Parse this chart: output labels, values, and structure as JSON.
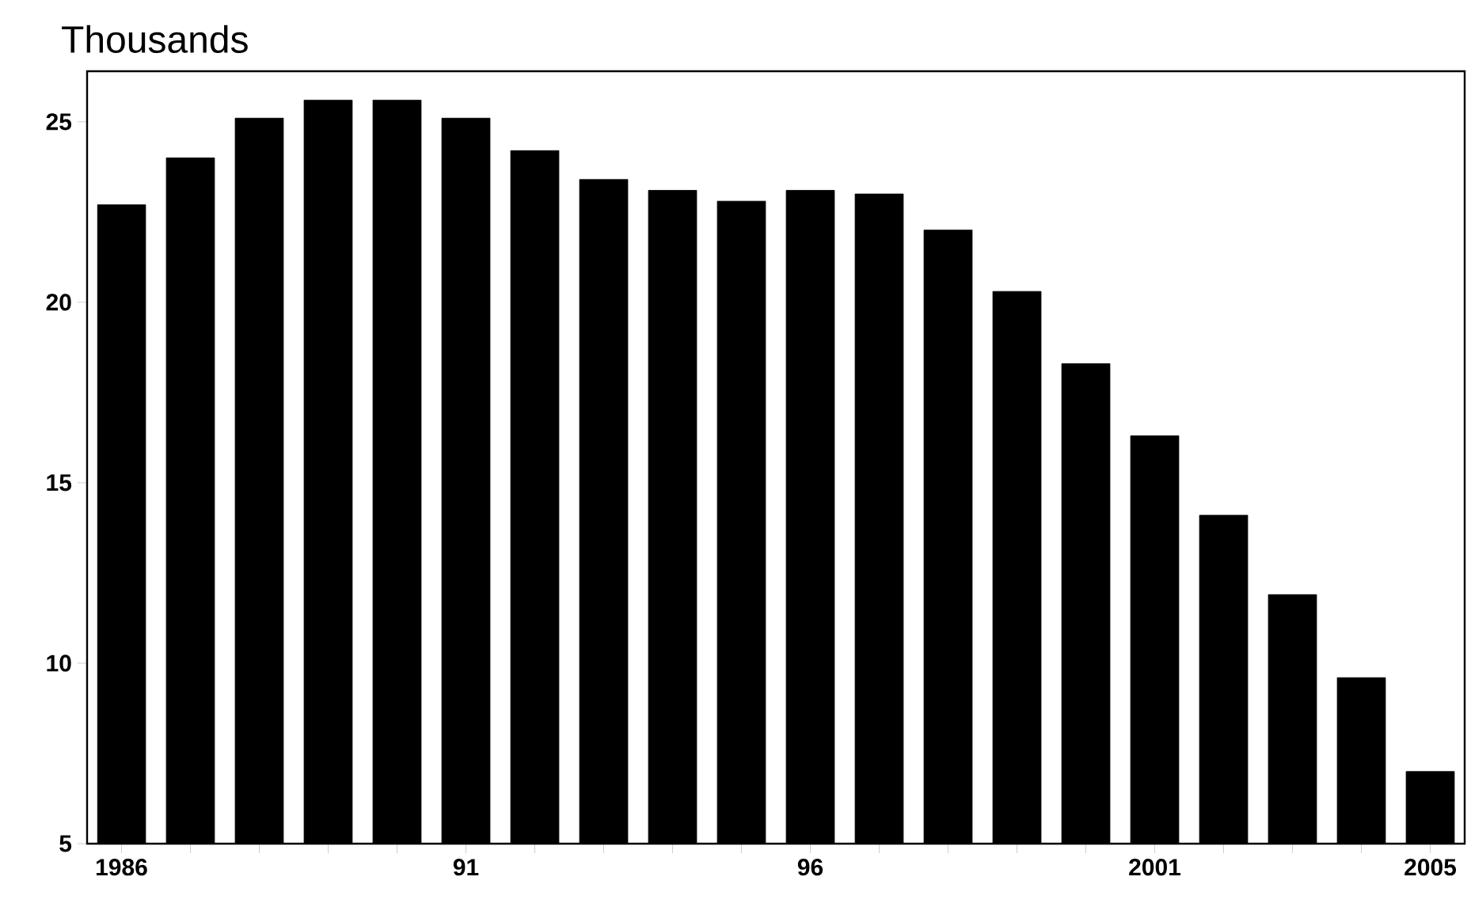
{
  "chart_data": {
    "type": "bar",
    "title": "Thousands",
    "categories": [
      "1986",
      null,
      null,
      null,
      null,
      "91",
      null,
      null,
      null,
      null,
      "96",
      null,
      null,
      null,
      null,
      "2001",
      null,
      null,
      null,
      "2005"
    ],
    "values": [
      22.7,
      24.0,
      25.1,
      25.6,
      25.6,
      25.1,
      24.2,
      23.4,
      23.1,
      22.8,
      23.1,
      23.0,
      22.0,
      20.3,
      18.3,
      16.3,
      14.1,
      11.9,
      9.6,
      7.0
    ],
    "color": "#000000",
    "ylim": [
      5,
      26.4
    ],
    "yticks": [
      5,
      10,
      15,
      20,
      25
    ],
    "grid": false
  }
}
